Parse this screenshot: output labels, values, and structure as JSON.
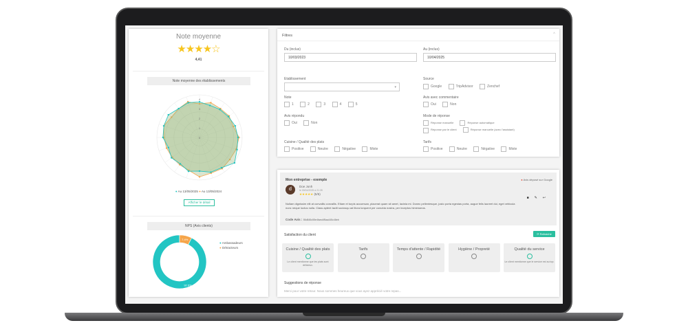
{
  "rating": {
    "title": "Note moyenne",
    "value": "4,41",
    "stars": 4.41,
    "max_stars": 5
  },
  "radar": {
    "title": "Note moyenne des établissements",
    "button": "Afficher le détail",
    "chart_data": {
      "type": "radar",
      "rlim": [
        0,
        4
      ],
      "ticks": [
        "0",
        "1",
        "2",
        "3",
        "4"
      ],
      "series": [
        {
          "name": "Au 13/05/2025",
          "color": "#1fc3c0",
          "values": [
            3.7,
            3.5,
            3.6,
            3.7,
            3.9,
            4.0,
            4.1,
            4.5,
            3.9,
            3.8,
            3.5,
            3.7,
            3.4,
            3.6,
            3.4,
            3.8,
            3.9,
            4.0,
            3.7,
            3.8
          ]
        },
        {
          "name": "Au 13/05/2024",
          "color": "#f5a54a",
          "values": [
            3.5,
            3.8,
            3.7,
            3.8,
            3.7,
            4.1,
            4.0,
            3.9,
            4.0,
            3.9,
            4.1,
            3.6,
            3.5,
            3.5,
            3.6,
            3.7,
            3.9,
            3.6,
            3.7,
            3.9
          ]
        }
      ]
    }
  },
  "nps": {
    "title": "NPS (Avis clients)",
    "chart_data": {
      "type": "pie",
      "labels": [
        "Ambassadeurs",
        "Détracteurs"
      ],
      "values": [
        92.6,
        7.4
      ],
      "value_labels": [
        "92.6%",
        "7.4%"
      ],
      "colors": [
        "#22c5c3",
        "#f5a54a"
      ]
    }
  },
  "filters": {
    "title": "Filtres",
    "from_label": "Du (inclus)",
    "from_value": "10/03/2023",
    "to_label": "Au (inclus)",
    "to_value": "10/04/2025",
    "etab_label": "Etablissement",
    "source_label": "Source",
    "sources": [
      "Google",
      "TripAdvisor",
      "Zenchef"
    ],
    "note_label": "Note",
    "notes": [
      "1",
      "2",
      "3",
      "4",
      "5"
    ],
    "comment_label": "Avis avec commentaire",
    "comment_opts": [
      "Oui",
      "Non"
    ],
    "replied_label": "Avis répondu",
    "replied_opts": [
      "Oui",
      "Non"
    ],
    "mode_label": "Mode de réponse",
    "modes": [
      "Réponse manuelle",
      "Réponse automatique",
      "Réponse par le client",
      "Réponse manuelle (avec l'assistant)"
    ],
    "cuisine_label": "Cuisine / Qualité des plats",
    "sentiments": [
      "Positive",
      "Neutre",
      "Négative",
      "Mixte"
    ],
    "tarifs_label": "Tarifs"
  },
  "review": {
    "company": "Mon entreprise - exemple",
    "source": "Avis déposé sur Google",
    "avatar_letter": "d",
    "author": "Doe Jonh",
    "date": "le 09/04/2025 à 21:35",
    "score": "(5/5)",
    "text": "Nullam dignissim elit at convallis convallis. Etiam et turpis accumsan, placerat quam sit amet, lacinia mi. Donec pellentesque, justo porta egestas porta, augue felis laoreet dui, eget vehicula nunc neque luctus nulla. Class aptent taciti sociosqu ad litora torquent per conubia nostra, per inceptos himenaeos.",
    "code_label": "Code Avis :",
    "code_value": "55d545c55e4faec4f5aa445c46eb",
    "satisfaction_title": "Satisfaction du client",
    "refresh": "Rafraichir",
    "tiles": [
      {
        "title": "Cuisine / Qualité des plats",
        "mood": "good",
        "note": "Le client mentionne que les plats sont délicieux."
      },
      {
        "title": "Tarifs",
        "mood": "neutral",
        "note": ""
      },
      {
        "title": "Temps d'attente / Rapidité",
        "mood": "neutral",
        "note": ""
      },
      {
        "title": "Hygiène / Propreté",
        "mood": "neutral",
        "note": ""
      },
      {
        "title": "Qualité du service",
        "mood": "good",
        "note": "Le client mentionne que le service est au top."
      }
    ],
    "suggest_title": "Suggestions de réponse",
    "suggest_text": "Merci pour votre retour. Nous sommes heureux que vous ayez apprécié votre repas..."
  }
}
